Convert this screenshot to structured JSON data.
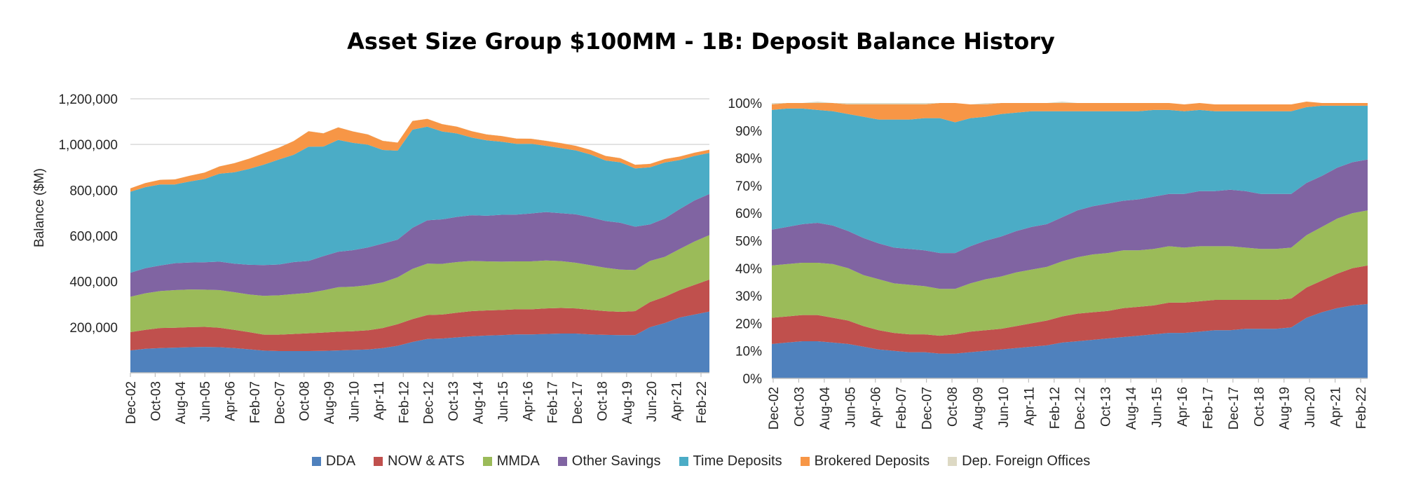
{
  "title": "Asset Size Group $100MM - 1B: Deposit Balance History",
  "colors": {
    "DDA": "#4f81bd",
    "NOW & ATS": "#c0504d",
    "MMDA": "#9bbb59",
    "Other Savings": "#8064a2",
    "Time Deposits": "#4bacc6",
    "Brokered Deposits": "#f79646",
    "Dep. Foreign Offices": "#ddd9c4"
  },
  "legend": [
    "DDA",
    "NOW & ATS",
    "MMDA",
    "Other Savings",
    "Time Deposits",
    "Brokered Deposits",
    "Dep. Foreign Offices"
  ],
  "chart_data": [
    {
      "type": "area",
      "stacked": true,
      "title": "",
      "ylabel": "Balance ($M)",
      "xlabel": "",
      "ylim": [
        0,
        1200000
      ],
      "yticks": [
        "200,000",
        "400,000",
        "600,000",
        "800,000",
        "1,000,000",
        "1,200,000"
      ],
      "x_tick_labels": [
        "Dec-02",
        "Oct-03",
        "Aug-04",
        "Jun-05",
        "Apr-06",
        "Feb-07",
        "Dec-07",
        "Oct-08",
        "Aug-09",
        "Jun-10",
        "Apr-11",
        "Feb-12",
        "Dec-12",
        "Oct-13",
        "Aug-14",
        "Jun-15",
        "Apr-16",
        "Feb-17",
        "Dec-17",
        "Oct-18",
        "Aug-19",
        "Jun-20",
        "Apr-21",
        "Feb-22"
      ],
      "gridlines": true,
      "x_points": [
        "Dec-02",
        "Jun-03",
        "Dec-03",
        "Jun-04",
        "Dec-04",
        "Jun-05",
        "Dec-05",
        "Jun-06",
        "Dec-06",
        "Jun-07",
        "Dec-07",
        "Jun-08",
        "Dec-08",
        "Jun-09",
        "Dec-09",
        "Jun-10",
        "Dec-10",
        "Jun-11",
        "Dec-11",
        "Mar-12",
        "Dec-12",
        "Jun-13",
        "Dec-13",
        "Jun-14",
        "Dec-14",
        "Jun-15",
        "Dec-15",
        "Jun-16",
        "Dec-16",
        "Jun-17",
        "Dec-17",
        "Jun-18",
        "Dec-18",
        "Jun-19",
        "Dec-19",
        "Jun-20",
        "Dec-20",
        "Jun-21",
        "Dec-21",
        "Mar-22"
      ],
      "series": [
        {
          "name": "DDA",
          "values": [
            98000,
            105000,
            108000,
            110000,
            112000,
            113000,
            112000,
            108000,
            103000,
            97000,
            95000,
            95000,
            95000,
            96000,
            98000,
            100000,
            102000,
            108000,
            118000,
            135000,
            148000,
            150000,
            155000,
            160000,
            163000,
            165000,
            168000,
            168000,
            170000,
            172000,
            172000,
            168000,
            166000,
            165000,
            165000,
            200000,
            218000,
            242000,
            255000,
            268000
          ]
        },
        {
          "name": "NOW & ATS",
          "values": [
            80000,
            83000,
            88000,
            87000,
            88000,
            88000,
            85000,
            80000,
            75000,
            70000,
            72000,
            75000,
            78000,
            80000,
            82000,
            82000,
            84000,
            88000,
            95000,
            100000,
            105000,
            105000,
            108000,
            110000,
            110000,
            110000,
            110000,
            110000,
            112000,
            112000,
            110000,
            108000,
            104000,
            102000,
            105000,
            110000,
            115000,
            120000,
            130000,
            140000
          ]
        },
        {
          "name": "MMDA",
          "values": [
            155000,
            160000,
            162000,
            165000,
            165000,
            163000,
            165000,
            165000,
            165000,
            170000,
            172000,
            175000,
            177000,
            185000,
            195000,
            195000,
            198000,
            200000,
            205000,
            220000,
            225000,
            222000,
            222000,
            220000,
            215000,
            212000,
            210000,
            210000,
            210000,
            205000,
            200000,
            195000,
            190000,
            185000,
            180000,
            180000,
            175000,
            180000,
            190000,
            195000
          ]
        },
        {
          "name": "Other Savings",
          "values": [
            105000,
            110000,
            112000,
            118000,
            118000,
            120000,
            125000,
            125000,
            130000,
            135000,
            135000,
            140000,
            140000,
            150000,
            155000,
            160000,
            165000,
            170000,
            165000,
            180000,
            190000,
            195000,
            198000,
            200000,
            200000,
            205000,
            205000,
            210000,
            212000,
            210000,
            212000,
            210000,
            205000,
            205000,
            190000,
            160000,
            168000,
            175000,
            180000,
            180000
          ]
        },
        {
          "name": "Time Deposits",
          "values": [
            355000,
            355000,
            355000,
            345000,
            355000,
            365000,
            385000,
            400000,
            420000,
            440000,
            460000,
            470000,
            500000,
            480000,
            490000,
            470000,
            450000,
            410000,
            390000,
            430000,
            410000,
            385000,
            365000,
            340000,
            330000,
            320000,
            310000,
            305000,
            290000,
            285000,
            280000,
            275000,
            265000,
            265000,
            255000,
            250000,
            245000,
            215000,
            195000,
            180000
          ]
        },
        {
          "name": "Brokered Deposits",
          "values": [
            15000,
            18000,
            20000,
            22000,
            25000,
            28000,
            32000,
            40000,
            45000,
            50000,
            52000,
            60000,
            68000,
            58000,
            55000,
            50000,
            45000,
            40000,
            35000,
            38000,
            34000,
            32000,
            30000,
            28000,
            26000,
            25000,
            23000,
            22000,
            22000,
            22000,
            20000,
            20000,
            20000,
            18000,
            16000,
            15000,
            15000,
            15000,
            14000,
            14000
          ]
        },
        {
          "name": "Dep. Foreign Offices",
          "values": [
            500,
            500,
            500,
            500,
            500,
            500,
            500,
            500,
            500,
            500,
            500,
            500,
            500,
            500,
            500,
            500,
            500,
            500,
            500,
            500,
            500,
            500,
            500,
            500,
            500,
            500,
            500,
            500,
            500,
            500,
            500,
            500,
            500,
            500,
            500,
            500,
            500,
            500,
            500,
            500
          ]
        }
      ]
    },
    {
      "type": "area",
      "stacked": true,
      "percent": true,
      "title": "",
      "ylabel": "",
      "xlabel": "",
      "ylim": [
        0,
        100
      ],
      "yticks": [
        "0%",
        "10%",
        "20%",
        "30%",
        "40%",
        "50%",
        "60%",
        "70%",
        "80%",
        "90%",
        "100%"
      ],
      "x_tick_labels": [
        "Dec-02",
        "Oct-03",
        "Aug-04",
        "Jun-05",
        "Apr-06",
        "Feb-07",
        "Dec-07",
        "Oct-08",
        "Aug-09",
        "Jun-10",
        "Apr-11",
        "Feb-12",
        "Dec-12",
        "Oct-13",
        "Aug-14",
        "Jun-15",
        "Apr-16",
        "Feb-17",
        "Dec-17",
        "Oct-18",
        "Aug-19",
        "Jun-20",
        "Apr-21",
        "Feb-22"
      ],
      "gridlines": false,
      "x_points": [
        "Dec-02",
        "Jun-03",
        "Dec-03",
        "Jun-04",
        "Dec-04",
        "Jun-05",
        "Dec-05",
        "Jun-06",
        "Dec-06",
        "Jun-07",
        "Dec-07",
        "Jun-08",
        "Dec-08",
        "Jun-09",
        "Dec-09",
        "Jun-10",
        "Dec-10",
        "Jun-11",
        "Dec-11",
        "Jun-12",
        "Dec-12",
        "Jun-13",
        "Dec-13",
        "Jun-14",
        "Dec-14",
        "Jun-15",
        "Dec-15",
        "Jun-16",
        "Dec-16",
        "Jun-17",
        "Dec-17",
        "Jun-18",
        "Dec-18",
        "Jun-19",
        "Dec-19",
        "Mar-20",
        "Dec-20",
        "Jun-21",
        "Dec-21",
        "Mar-22"
      ],
      "series": [
        {
          "name": "DDA",
          "values": [
            12.5,
            13,
            13.5,
            13.5,
            13,
            12.5,
            11.5,
            10.5,
            10,
            9.5,
            9.5,
            9,
            9,
            9.5,
            10,
            10.5,
            11,
            11.5,
            12,
            13,
            13.5,
            14,
            14.5,
            15,
            15.5,
            16,
            16.5,
            16.5,
            17,
            17.5,
            17.5,
            18,
            18,
            18,
            18.5,
            22,
            24,
            25.5,
            26.5,
            27
          ]
        },
        {
          "name": "NOW & ATS",
          "values": [
            9.5,
            9.5,
            9.5,
            9.5,
            9,
            8.5,
            7.5,
            7,
            6.5,
            6.5,
            6.5,
            6.5,
            7,
            7.5,
            7.5,
            7.5,
            8,
            8.5,
            9,
            9.5,
            10,
            10,
            10,
            10.5,
            10.5,
            10.5,
            11,
            11,
            11,
            11,
            11,
            10.5,
            10.5,
            10.5,
            10.5,
            11,
            11.5,
            12.5,
            13.5,
            14
          ]
        },
        {
          "name": "MMDA",
          "values": [
            19,
            19,
            19,
            19,
            19.5,
            19,
            18.5,
            18.5,
            18,
            18,
            17.5,
            17,
            16.5,
            17.5,
            18.5,
            19,
            19.5,
            19.5,
            19.5,
            20,
            20.5,
            21,
            21,
            21,
            20.5,
            20.5,
            20.5,
            20,
            20,
            19.5,
            19.5,
            19,
            18.5,
            18.5,
            18.5,
            19,
            19.5,
            20,
            20,
            20
          ]
        },
        {
          "name": "Other Savings",
          "values": [
            13,
            13.5,
            14,
            14.5,
            14,
            13.5,
            13.5,
            13,
            13,
            13,
            13,
            13,
            13,
            13.5,
            14,
            14.5,
            15,
            15.5,
            15.5,
            16,
            17,
            17.5,
            18,
            18,
            18.5,
            19,
            19,
            19.5,
            20,
            20,
            20.5,
            20.5,
            20,
            20,
            19.5,
            19,
            18.5,
            18.5,
            18.5,
            18.5
          ]
        },
        {
          "name": "Time Deposits",
          "values": [
            43.5,
            43,
            42,
            41,
            41.5,
            42.5,
            44,
            45,
            46.5,
            47,
            48,
            49,
            47.5,
            46.5,
            45,
            44.5,
            43,
            42,
            41,
            38.5,
            36,
            34.5,
            33.5,
            32.5,
            32,
            31.5,
            30.5,
            30,
            29.5,
            29,
            28.5,
            29,
            30,
            30,
            30,
            27.5,
            25.5,
            22.5,
            20.5,
            19.5
          ]
        },
        {
          "name": "Brokered Deposits",
          "values": [
            2,
            2,
            2,
            2.5,
            3,
            3.5,
            4.5,
            5.5,
            5.5,
            5.5,
            5,
            5.5,
            7,
            5,
            4.5,
            4,
            3.5,
            3,
            3,
            3,
            3,
            3,
            3,
            3,
            3,
            2.5,
            2.5,
            2.5,
            2.5,
            2.5,
            2.5,
            2.5,
            2.5,
            2.5,
            2.5,
            2,
            1,
            1,
            1,
            1
          ]
        },
        {
          "name": "Dep. Foreign Offices",
          "values": [
            0.5,
            0,
            0,
            0.5,
            0,
            0.5,
            0.5,
            0.5,
            0.5,
            0.5,
            0.5,
            0,
            0,
            0,
            0.5,
            0,
            0,
            0,
            0,
            0.5,
            0,
            0,
            0,
            0,
            0,
            0,
            0,
            0,
            0,
            0,
            0,
            0,
            0,
            0,
            0,
            0,
            0,
            0,
            0,
            0
          ]
        }
      ]
    }
  ]
}
